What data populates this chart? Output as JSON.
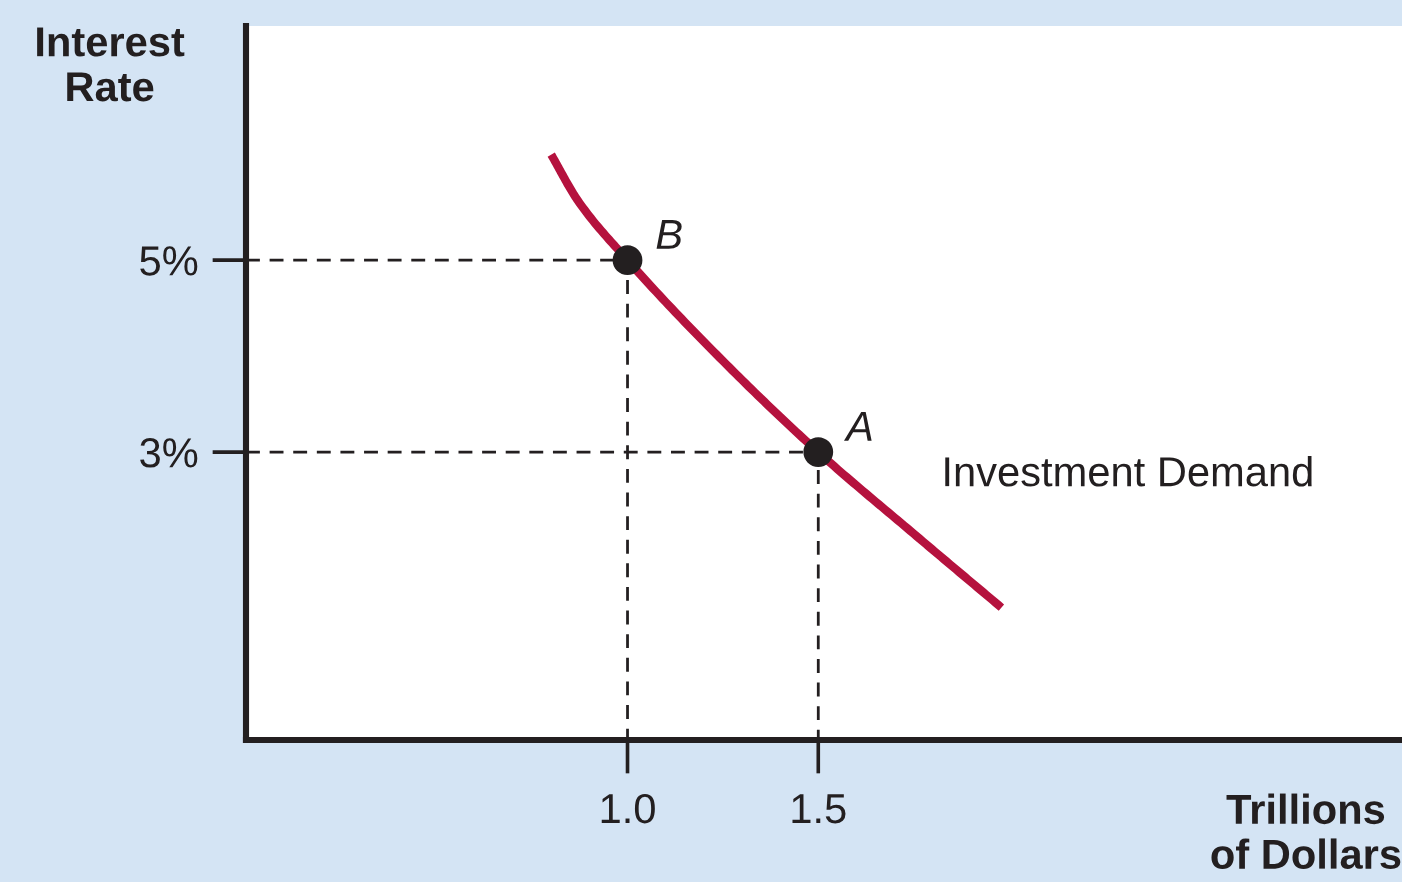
{
  "chart_data": {
    "type": "line",
    "xlabel": "Trillions\nof Dollars",
    "ylabel": "Interest\nRate",
    "xlim": [
      0,
      3.03
    ],
    "ylim": [
      0,
      7.44
    ],
    "xticks": [
      {
        "value": 1.0,
        "label": "1.0"
      },
      {
        "value": 1.5,
        "label": "1.5"
      }
    ],
    "yticks": [
      {
        "value": 3,
        "label": "3%"
      },
      {
        "value": 5,
        "label": "5%"
      }
    ],
    "series": [
      {
        "x": [
          0,
          1.0,
          1.0
        ],
        "values": [
          5,
          5,
          0
        ],
        "color": "#231f20",
        "line_style": "dashed"
      },
      {
        "x": [
          0,
          1.5,
          1.5
        ],
        "values": [
          3,
          3,
          0
        ],
        "color": "#231f20",
        "line_style": "dashed"
      },
      {
        "name": "Investment Demand",
        "x": [
          0.8,
          0.87,
          1.0,
          1.25,
          1.5,
          1.75,
          1.98
        ],
        "values": [
          6.1,
          5.62,
          5,
          3.95,
          3,
          2.15,
          1.38
        ],
        "color": "#b5123e",
        "line_style": "solid"
      },
      {
        "type": "scatter",
        "x": [
          1.0,
          1.5
        ],
        "values": [
          5,
          3
        ],
        "color": "#231f20",
        "marker": "circle"
      }
    ],
    "annotations": [
      {
        "text": "B",
        "x": 1.0,
        "y": 5
      },
      {
        "text": "A",
        "x": 1.5,
        "y": 3
      }
    ]
  }
}
